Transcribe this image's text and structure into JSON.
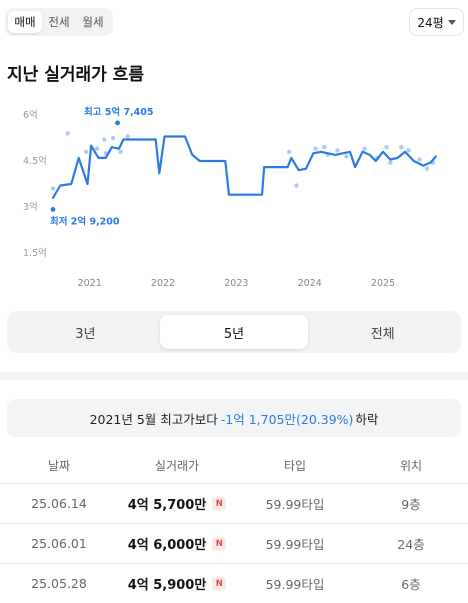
{
  "trade_tabs": [
    {
      "label": "매매",
      "active": true
    },
    {
      "label": "전세",
      "active": false
    },
    {
      "label": "월세",
      "active": false
    }
  ],
  "size_select": {
    "value": "24평"
  },
  "section_title": "지난 실거래가 흐름",
  "chart_data": {
    "type": "line",
    "title": "",
    "xlabel": "",
    "ylabel": "",
    "ylim": [
      1.5,
      6
    ],
    "y_ticks": [
      "6억",
      "4.5억",
      "3억",
      "1.5억"
    ],
    "x_ticks": [
      "2021",
      "2022",
      "2023",
      "2024",
      "2025"
    ],
    "annotations": {
      "max": {
        "label": "최고 5억 7,405",
        "x": 2021.38,
        "y": 5.7405
      },
      "min": {
        "label": "최저 2억 9,200",
        "x": 2020.5,
        "y": 2.92
      }
    },
    "series": [
      {
        "line": [
          [
            2020.5,
            3.3
          ],
          [
            2020.6,
            3.7
          ],
          [
            2020.75,
            3.75
          ],
          [
            2020.85,
            4.6
          ],
          [
            2020.97,
            3.75
          ],
          [
            2021.02,
            5.0
          ],
          [
            2021.12,
            4.6
          ],
          [
            2021.22,
            4.6
          ],
          [
            2021.3,
            4.95
          ],
          [
            2021.4,
            4.9
          ],
          [
            2021.46,
            5.2
          ],
          [
            2021.6,
            5.2
          ],
          [
            2021.8,
            5.2
          ],
          [
            2021.9,
            5.2
          ],
          [
            2021.95,
            4.1
          ],
          [
            2022.02,
            5.3
          ],
          [
            2022.15,
            5.3
          ],
          [
            2022.3,
            5.3
          ],
          [
            2022.4,
            4.7
          ],
          [
            2022.5,
            4.5
          ],
          [
            2022.6,
            4.5
          ],
          [
            2022.8,
            4.5
          ],
          [
            2022.85,
            4.5
          ],
          [
            2022.9,
            3.4
          ],
          [
            2023.0,
            3.4
          ],
          [
            2023.15,
            3.4
          ],
          [
            2023.35,
            3.4
          ],
          [
            2023.38,
            4.3
          ],
          [
            2023.5,
            4.3
          ],
          [
            2023.65,
            4.3
          ],
          [
            2023.7,
            4.3
          ],
          [
            2023.75,
            4.6
          ],
          [
            2023.85,
            4.2
          ],
          [
            2023.95,
            4.25
          ],
          [
            2024.05,
            4.75
          ],
          [
            2024.15,
            4.8
          ],
          [
            2024.25,
            4.75
          ],
          [
            2024.35,
            4.7
          ],
          [
            2024.45,
            4.75
          ],
          [
            2024.55,
            4.8
          ],
          [
            2024.62,
            4.3
          ],
          [
            2024.72,
            4.8
          ],
          [
            2024.82,
            4.7
          ],
          [
            2024.9,
            4.5
          ],
          [
            2025.0,
            4.8
          ],
          [
            2025.1,
            4.55
          ],
          [
            2025.2,
            4.6
          ],
          [
            2025.3,
            4.8
          ],
          [
            2025.42,
            4.5
          ],
          [
            2025.55,
            4.35
          ],
          [
            2025.65,
            4.45
          ],
          [
            2025.72,
            4.65
          ]
        ]
      },
      {
        "points": [
          [
            2020.5,
            3.6
          ],
          [
            2020.7,
            5.4
          ],
          [
            2020.95,
            4.8
          ],
          [
            2021.1,
            4.9
          ],
          [
            2021.2,
            5.2
          ],
          [
            2021.22,
            4.75
          ],
          [
            2021.32,
            5.25
          ],
          [
            2021.38,
            5.7405
          ],
          [
            2021.42,
            4.8
          ],
          [
            2021.52,
            5.3
          ],
          [
            2023.72,
            4.8
          ],
          [
            2023.82,
            3.7
          ],
          [
            2024.08,
            4.9
          ],
          [
            2024.2,
            4.95
          ],
          [
            2024.25,
            4.7
          ],
          [
            2024.38,
            4.85
          ],
          [
            2024.5,
            4.65
          ],
          [
            2024.75,
            4.9
          ],
          [
            2024.92,
            4.6
          ],
          [
            2025.05,
            4.95
          ],
          [
            2025.1,
            4.45
          ],
          [
            2025.25,
            4.95
          ],
          [
            2025.35,
            4.85
          ],
          [
            2025.5,
            4.55
          ],
          [
            2025.6,
            4.25
          ],
          [
            2025.68,
            4.45
          ]
        ]
      },
      {
        "min_point": [
          2020.5,
          2.92
        ]
      }
    ]
  },
  "period_tabs": [
    {
      "label": "3년",
      "active": false
    },
    {
      "label": "5년",
      "active": true
    },
    {
      "label": "전체",
      "active": false
    }
  ],
  "summary": {
    "prefix": "2021년 5월 최고가보다",
    "change": "-1억 1,705만(20.39%)",
    "suffix": "하락"
  },
  "table": {
    "headers": [
      "날짜",
      "실거래가",
      "타입",
      "위치"
    ],
    "rows": [
      {
        "date": "25.06.14",
        "price": "4억 5,700만",
        "badge": "N",
        "type": "59.99타입",
        "floor": "9층"
      },
      {
        "date": "25.06.01",
        "price": "4억 6,000만",
        "badge": "N",
        "type": "59.99타입",
        "floor": "24층"
      },
      {
        "date": "25.05.28",
        "price": "4억 5,900만",
        "badge": "N",
        "type": "59.99타입",
        "floor": "6층"
      }
    ]
  },
  "colors": {
    "line": "#2b7be4",
    "points": "#a9ccf5",
    "accent_text": "#2b7be4",
    "badge_bg": "#fde8ea",
    "badge_text": "#e5484d"
  }
}
